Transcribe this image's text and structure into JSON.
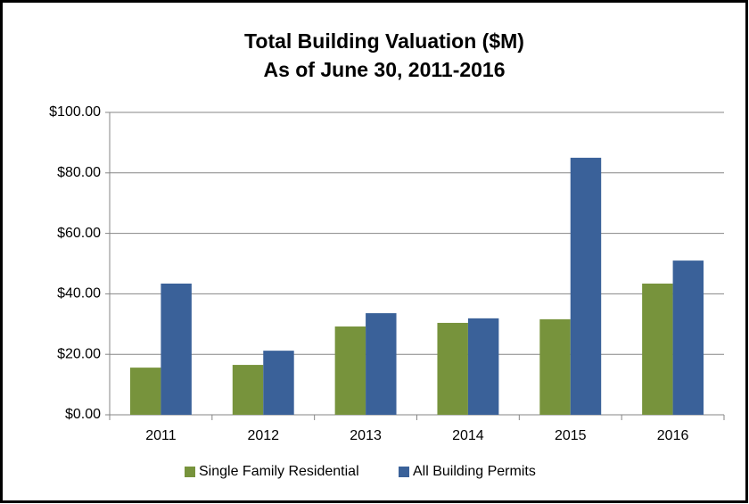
{
  "chart_data": {
    "type": "bar",
    "title": "Total Building Valuation ($M)",
    "subtitle": "As of June 30, 2011-2016",
    "categories": [
      "2011",
      "2012",
      "2013",
      "2014",
      "2015",
      "2016"
    ],
    "series": [
      {
        "name": "Single Family Residential",
        "color": "#77933c",
        "values": [
          15.6,
          16.5,
          29.2,
          30.4,
          31.6,
          43.4
        ]
      },
      {
        "name": "All Building Permits",
        "color": "#3a6199",
        "values": [
          43.4,
          21.2,
          33.6,
          31.9,
          85.0,
          51.0
        ]
      }
    ],
    "ylim": [
      0,
      100
    ],
    "yticks": [
      {
        "value": 0,
        "label": "$0.00"
      },
      {
        "value": 20,
        "label": "$20.00"
      },
      {
        "value": 40,
        "label": "$40.00"
      },
      {
        "value": 60,
        "label": "$60.00"
      },
      {
        "value": 80,
        "label": "$80.00"
      },
      {
        "value": 100,
        "label": "$100.00"
      }
    ],
    "grid": true,
    "legend": "bottom"
  }
}
